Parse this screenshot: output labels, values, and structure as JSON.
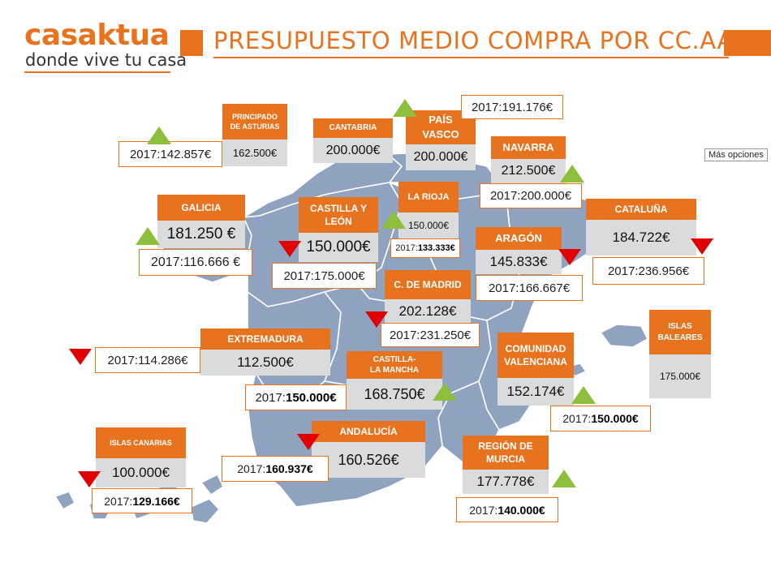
{
  "brand": {
    "name": "casaktua",
    "tagline": "donde vive tu casa"
  },
  "title": "PRESUPUESTO MEDIO COMPRA POR CC.AA.",
  "more_options": "Más opciones",
  "colors": {
    "accent": "#e8731e",
    "value_bg": "#dadbdc",
    "map": "#8fa3c0",
    "up": "#8dbf3c",
    "down": "#e00000"
  },
  "legend_icons": {
    "up": "triangle-up-green-icon",
    "down": "triangle-down-red-icon"
  },
  "regions": [
    {
      "id": "asturias",
      "name": "PRINCIPADO\nDE ASTURIAS",
      "value": "162.500€",
      "prev_prefix": "2017:",
      "prev_value": "142.857€",
      "trend": "up"
    },
    {
      "id": "cantabria",
      "name": "CANTABRIA",
      "value": "200.000€",
      "prev_prefix": "",
      "prev_value": "",
      "trend": ""
    },
    {
      "id": "pais-vasco",
      "name": "PAÍS\nVASCO",
      "value": "200.000€",
      "prev_prefix": "2017:",
      "prev_value": "191.176€",
      "trend": "up"
    },
    {
      "id": "navarra",
      "name": "NAVARRA",
      "value": "212.500€",
      "prev_prefix": "2017:",
      "prev_value": "200.000€",
      "trend": "up"
    },
    {
      "id": "galicia",
      "name": "GALICIA",
      "value": "181.250 €",
      "prev_prefix": "2017:",
      "prev_value": "116.666 €",
      "trend": "up"
    },
    {
      "id": "castilla-leon",
      "name": "CASTILLA Y\nLEÓN",
      "value": "150.000€",
      "prev_prefix": "2017:",
      "prev_value": "175.000€",
      "trend": "down"
    },
    {
      "id": "la-rioja",
      "name": "LA RIOJA",
      "value": "150.000€",
      "prev_prefix": "2017:",
      "prev_value": "133.333€",
      "trend": "up"
    },
    {
      "id": "aragon",
      "name": "ARAGÓN",
      "value": "145.833€",
      "prev_prefix": "2017:",
      "prev_value": "166.667€",
      "trend": "down"
    },
    {
      "id": "cataluna",
      "name": "CATALUÑA",
      "value": "184.722€",
      "prev_prefix": "2017:",
      "prev_value": "236.956€",
      "trend": "down"
    },
    {
      "id": "madrid",
      "name": "C. DE MADRID",
      "value": "202.128€",
      "prev_prefix": "2017:",
      "prev_value": "231.250€",
      "trend": "down"
    },
    {
      "id": "extremadura",
      "name": "EXTREMADURA",
      "value": "112.500€",
      "prev_prefix": "2017:",
      "prev_value": "114.286€",
      "trend": "down"
    },
    {
      "id": "castilla-la-mancha",
      "name": "CASTILLA-\nLA MANCHA",
      "value": "168.750€",
      "prev_prefix": "2017:",
      "prev_value": "150.000€",
      "trend": "up"
    },
    {
      "id": "valenciana",
      "name": "COMUNIDAD\nVALENCIANA",
      "value": "152.174€",
      "prev_prefix": "2017:",
      "prev_value": "150.000€",
      "trend": "up"
    },
    {
      "id": "baleares",
      "name": "ISLAS\nBALEARES",
      "value": "175.000€",
      "prev_prefix": "",
      "prev_value": "",
      "trend": ""
    },
    {
      "id": "andalucia",
      "name": "ANDALUCÍA",
      "value": "160.526€",
      "prev_prefix": "2017:",
      "prev_value": "160.937€",
      "trend": "down"
    },
    {
      "id": "murcia",
      "name": "REGIÓN DE\nMURCIA",
      "value": "177.778€",
      "prev_prefix": "2017:",
      "prev_value": "140.000€",
      "trend": "up"
    },
    {
      "id": "canarias",
      "name": "ISLAS CANARIAS",
      "value": "100.000€",
      "prev_prefix": "2017:",
      "prev_value": "129.166€",
      "trend": "down"
    }
  ]
}
